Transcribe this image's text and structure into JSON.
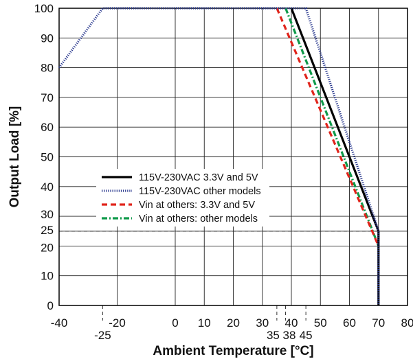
{
  "chart_data": {
    "type": "line",
    "xlabel": "Ambient Temperature [°C]",
    "ylabel": "Output Load [%]",
    "xlim": [
      -40,
      80
    ],
    "ylim": [
      0,
      100
    ],
    "x_ticks": [
      -40,
      -20,
      0,
      10,
      20,
      30,
      40,
      50,
      60,
      70,
      80
    ],
    "x_ticks_extra": [
      {
        "label": "-25",
        "value": -25
      },
      {
        "label": "35",
        "value": 35
      },
      {
        "label": "38",
        "value": 38
      },
      {
        "label": "45",
        "value": 45
      }
    ],
    "y_ticks": [
      0,
      10,
      20,
      25,
      30,
      40,
      50,
      60,
      70,
      80,
      90,
      100
    ],
    "grid": true,
    "reference_lines": [
      {
        "axis": "x",
        "value": -25,
        "from": 0,
        "to": 100
      },
      {
        "axis": "x",
        "value": 35,
        "from": 0,
        "to": 100
      },
      {
        "axis": "x",
        "value": 38,
        "from": 0,
        "to": 100
      },
      {
        "axis": "x",
        "value": 45,
        "from": 0,
        "to": 100
      },
      {
        "axis": "y",
        "value": 25,
        "from": -40,
        "to": 70
      }
    ],
    "series": [
      {
        "name": "115V-230VAC 3.3V and 5V",
        "color": "#000000",
        "style": "solid",
        "points": [
          [
            40,
            100
          ],
          [
            70,
            25
          ],
          [
            70,
            0
          ]
        ]
      },
      {
        "name": "115V-230VAC other models",
        "color": "#2b3a8f",
        "style": "dotted",
        "points": [
          [
            -40,
            80
          ],
          [
            -25,
            100
          ],
          [
            45,
            100
          ],
          [
            70,
            25
          ],
          [
            70,
            0
          ]
        ]
      },
      {
        "name": "Vin at others: 3.3V and 5V",
        "color": "#e0241b",
        "style": "dashed",
        "points": [
          [
            35,
            100
          ],
          [
            70,
            20
          ]
        ]
      },
      {
        "name": "Vin at others: other models",
        "color": "#0f9a4a",
        "style": "dashdot",
        "points": [
          [
            38,
            100
          ],
          [
            70,
            20
          ]
        ]
      }
    ],
    "legend_position": "center-left"
  }
}
